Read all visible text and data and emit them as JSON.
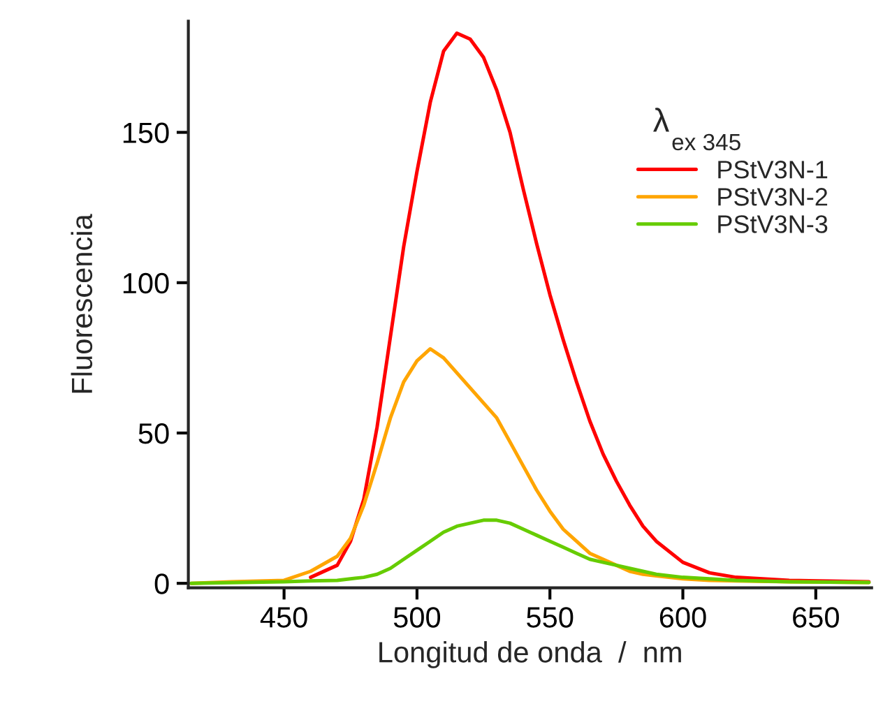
{
  "chart_data": {
    "type": "line",
    "xlabel": "Longitud de onda  /  nm",
    "ylabel": "Fluorescencia",
    "legend_title": "λ$_{ex 345}$",
    "x": [
      415,
      430,
      450,
      460,
      470,
      475,
      480,
      485,
      490,
      495,
      500,
      505,
      510,
      515,
      520,
      525,
      530,
      535,
      540,
      545,
      550,
      555,
      560,
      565,
      570,
      575,
      580,
      585,
      590,
      600,
      610,
      620,
      640,
      670
    ],
    "series": [
      {
        "name": "PStV3N-1",
        "color": "#ff0000",
        "values": [
          null,
          null,
          null,
          2,
          6,
          14,
          28,
          52,
          82,
          112,
          137,
          160,
          177,
          183,
          181,
          175,
          164,
          150,
          131,
          113,
          96,
          81,
          67,
          54,
          43,
          34,
          26,
          19,
          14,
          7,
          3.5,
          2,
          1,
          0.5
        ]
      },
      {
        "name": "PStV3N-2",
        "color": "#ffa500",
        "values": [
          0,
          0.5,
          1,
          4,
          9,
          15,
          26,
          40,
          55,
          67,
          74,
          78,
          75,
          70,
          65,
          60,
          55,
          47,
          39,
          31,
          24,
          18,
          14,
          10,
          8,
          6,
          4,
          3,
          2.5,
          1.5,
          1,
          0.8,
          0.5,
          0.3
        ]
      },
      {
        "name": "PStV3N-3",
        "color": "#66cc00",
        "values": [
          0,
          0.2,
          0.5,
          0.8,
          1,
          1.5,
          2,
          3,
          5,
          8,
          11,
          14,
          17,
          19,
          20,
          21,
          21,
          20,
          18,
          16,
          14,
          12,
          10,
          8,
          7,
          6,
          5,
          4,
          3,
          2,
          1.5,
          1,
          0.5,
          0.3
        ]
      }
    ],
    "xlim": [
      414,
      671
    ],
    "ylim": [
      -1.5,
      187
    ],
    "xticks": [
      450,
      500,
      550,
      600,
      650
    ],
    "yticks": [
      0,
      50,
      100,
      150
    ],
    "grid": false,
    "legend": "top right",
    "marker": "none",
    "line_style": "solid"
  }
}
